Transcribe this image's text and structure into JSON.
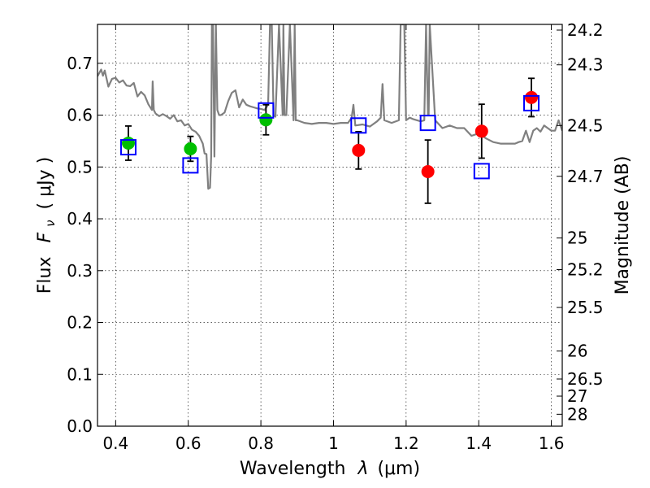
{
  "chart_data": {
    "type": "scatter",
    "xlabel_prefix": "Wavelength",
    "xlabel_symbol": "λ",
    "xlabel_unit": "(μm)",
    "ylabel_prefix": "Flux",
    "ylabel_symbol": "F",
    "ylabel_subscript": "ν",
    "ylabel_unit": "( μJy )",
    "y2label": "Magnitude (AB)",
    "xlim": [
      0.35,
      1.63
    ],
    "ylim": [
      0.0,
      0.775
    ],
    "grid": true,
    "x_ticks": [
      0.4,
      0.6,
      0.8,
      1.0,
      1.2,
      1.4,
      1.6
    ],
    "x_tick_labels": [
      "0.4",
      "0.6",
      "0.8",
      "1",
      "1.2",
      "1.4",
      "1.6"
    ],
    "y_ticks": [
      0.0,
      0.1,
      0.2,
      0.3,
      0.4,
      0.5,
      0.6,
      0.7
    ],
    "y_tick_labels": [
      "0.0",
      "0.1",
      "0.2",
      "0.3",
      "0.4",
      "0.5",
      "0.6",
      "0.7"
    ],
    "mag_ticks": [
      {
        "label": "24.2",
        "flux": 0.764
      },
      {
        "label": "24.3",
        "flux": 0.697
      },
      {
        "label": "24.5",
        "flux": 0.58
      },
      {
        "label": "24.7",
        "flux": 0.482
      },
      {
        "label": "25",
        "flux": 0.363
      },
      {
        "label": "25.2",
        "flux": 0.302
      },
      {
        "label": "25.5",
        "flux": 0.229
      },
      {
        "label": "26",
        "flux": 0.145
      },
      {
        "label": "26.5",
        "flux": 0.091
      },
      {
        "label": "27",
        "flux": 0.058
      },
      {
        "label": "28",
        "flux": 0.023
      }
    ],
    "series": [
      {
        "marker": "circle",
        "color": "#00bf00",
        "points": [
          {
            "x": 0.435,
            "y": 0.546,
            "err": 0.033
          },
          {
            "x": 0.606,
            "y": 0.535,
            "err": 0.024
          },
          {
            "x": 0.814,
            "y": 0.591,
            "err": 0.029
          }
        ]
      },
      {
        "marker": "circle",
        "color": "#ff0000",
        "points": [
          {
            "x": 1.069,
            "y": 0.532,
            "err": 0.036
          },
          {
            "x": 1.26,
            "y": 0.491,
            "err": 0.061
          },
          {
            "x": 1.408,
            "y": 0.569,
            "err": 0.052
          },
          {
            "x": 1.545,
            "y": 0.634,
            "err": 0.037
          }
        ]
      },
      {
        "marker": "open-square",
        "color": "#0000ff",
        "points": [
          {
            "x": 0.435,
            "y": 0.538
          },
          {
            "x": 0.606,
            "y": 0.503
          },
          {
            "x": 0.814,
            "y": 0.609
          },
          {
            "x": 1.069,
            "y": 0.58
          },
          {
            "x": 1.26,
            "y": 0.585
          },
          {
            "x": 1.408,
            "y": 0.492
          },
          {
            "x": 1.545,
            "y": 0.623
          }
        ]
      }
    ],
    "model_spectrum": {
      "color": "#808080",
      "x": [
        0.35,
        0.36,
        0.365,
        0.37,
        0.38,
        0.39,
        0.4,
        0.41,
        0.42,
        0.43,
        0.44,
        0.45,
        0.46,
        0.47,
        0.48,
        0.49,
        0.5,
        0.502,
        0.505,
        0.51,
        0.52,
        0.53,
        0.54,
        0.55,
        0.56,
        0.57,
        0.58,
        0.59,
        0.6,
        0.61,
        0.62,
        0.63,
        0.64,
        0.645,
        0.65,
        0.655,
        0.66,
        0.663,
        0.665,
        0.668,
        0.672,
        0.676,
        0.68,
        0.685,
        0.69,
        0.7,
        0.71,
        0.72,
        0.73,
        0.74,
        0.75,
        0.76,
        0.77,
        0.78,
        0.79,
        0.8,
        0.81,
        0.82,
        0.825,
        0.83,
        0.835,
        0.84,
        0.85,
        0.86,
        0.862,
        0.865,
        0.87,
        0.88,
        0.89,
        0.893,
        0.896,
        0.9,
        0.92,
        0.94,
        0.96,
        0.98,
        1.0,
        1.02,
        1.04,
        1.05,
        1.055,
        1.06,
        1.08,
        1.1,
        1.12,
        1.13,
        1.135,
        1.14,
        1.16,
        1.18,
        1.185,
        1.19,
        1.195,
        1.2,
        1.21,
        1.22,
        1.24,
        1.25,
        1.255,
        1.26,
        1.262,
        1.265,
        1.28,
        1.3,
        1.32,
        1.34,
        1.36,
        1.38,
        1.4,
        1.42,
        1.44,
        1.46,
        1.48,
        1.5,
        1.51,
        1.52,
        1.53,
        1.54,
        1.55,
        1.56,
        1.57,
        1.58,
        1.59,
        1.6,
        1.61,
        1.62,
        1.63
      ],
      "y": [
        0.675,
        0.688,
        0.676,
        0.686,
        0.655,
        0.67,
        0.672,
        0.663,
        0.667,
        0.657,
        0.656,
        0.662,
        0.636,
        0.645,
        0.638,
        0.621,
        0.61,
        0.665,
        0.61,
        0.603,
        0.598,
        0.602,
        0.598,
        0.593,
        0.6,
        0.588,
        0.59,
        0.58,
        0.583,
        0.572,
        0.568,
        0.56,
        0.545,
        0.526,
        0.525,
        0.458,
        0.46,
        0.52,
        0.775,
        0.775,
        0.52,
        0.775,
        0.61,
        0.6,
        0.6,
        0.605,
        0.627,
        0.643,
        0.648,
        0.615,
        0.63,
        0.62,
        0.617,
        0.615,
        0.613,
        0.612,
        0.61,
        0.62,
        0.775,
        0.775,
        0.6,
        0.597,
        0.775,
        0.6,
        0.775,
        0.6,
        0.6,
        0.775,
        0.59,
        0.775,
        0.59,
        0.59,
        0.585,
        0.583,
        0.585,
        0.585,
        0.583,
        0.585,
        0.585,
        0.595,
        0.62,
        0.58,
        0.582,
        0.578,
        0.588,
        0.595,
        0.66,
        0.59,
        0.585,
        0.59,
        0.775,
        0.775,
        0.775,
        0.59,
        0.595,
        0.592,
        0.588,
        0.59,
        0.775,
        0.6,
        0.6,
        0.775,
        0.59,
        0.575,
        0.58,
        0.575,
        0.575,
        0.56,
        0.565,
        0.555,
        0.548,
        0.545,
        0.545,
        0.545,
        0.548,
        0.55,
        0.57,
        0.548,
        0.57,
        0.575,
        0.568,
        0.58,
        0.575,
        0.57,
        0.57,
        0.59,
        0.57
      ]
    }
  }
}
